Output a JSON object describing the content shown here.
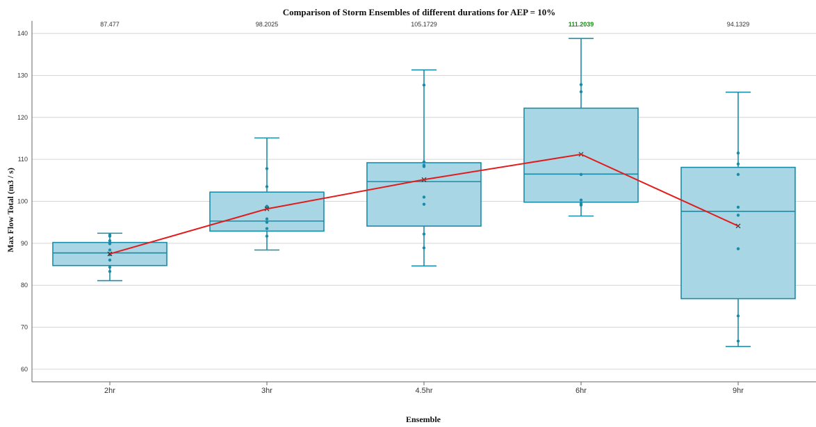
{
  "chart_data": {
    "type": "box",
    "title": "Comparison of Storm Ensembles of different durations for AEP =  10%",
    "xlabel": "Ensemble",
    "ylabel": "Max Flow Total (m3 / s)",
    "ylim": [
      57,
      143
    ],
    "yticks": [
      60,
      70,
      80,
      90,
      100,
      110,
      120,
      130,
      140
    ],
    "grid": true,
    "categories": [
      "2hr",
      "3hr",
      "4.5hr",
      "6hr",
      "9hr"
    ],
    "mean_labels": [
      "87.477",
      "98.2025",
      "105.1729",
      "111.2039",
      "94.1329"
    ],
    "highlight_index": 3,
    "boxes": [
      {
        "category": "2hr",
        "min": 81.1,
        "q1": 84.7,
        "median": 87.7,
        "q3": 90.2,
        "max": 92.4,
        "mean": 87.477,
        "points": [
          92.0,
          91.7,
          90.6,
          90.1,
          89.9,
          88.4,
          87.3,
          86.0,
          84.3,
          83.3
        ]
      },
      {
        "category": "3hr",
        "min": 88.4,
        "q1": 92.9,
        "median": 95.3,
        "q3": 102.2,
        "max": 115.1,
        "mean": 98.2025,
        "points": [
          107.8,
          103.5,
          98.8,
          98.5,
          95.8,
          95.0,
          93.5,
          91.7
        ]
      },
      {
        "category": "4.5hr",
        "min": 84.6,
        "q1": 94.1,
        "median": 104.7,
        "q3": 109.2,
        "max": 131.3,
        "mean": 105.1729,
        "points": [
          127.7,
          109.4,
          108.6,
          108.3,
          101.0,
          99.3,
          92.2,
          88.9
        ]
      },
      {
        "category": "6hr",
        "min": 96.5,
        "q1": 99.8,
        "median": 106.5,
        "q3": 122.2,
        "max": 138.8,
        "mean": 111.2039,
        "points": [
          127.8,
          126.1,
          106.4,
          100.3,
          99.4,
          99.1
        ]
      },
      {
        "category": "9hr",
        "min": 65.4,
        "q1": 76.8,
        "median": 97.6,
        "q3": 108.1,
        "max": 126.0,
        "mean": 94.1329,
        "points": [
          111.5,
          108.9,
          106.4,
          98.6,
          96.7,
          88.7,
          72.7,
          66.7
        ]
      }
    ],
    "mean_line": {
      "values": [
        87.477,
        98.2025,
        105.1729,
        111.2039,
        94.1329
      ],
      "color": "#e21b1b"
    },
    "colors": {
      "box_fill": "#a8d6e4",
      "box_stroke": "#1a8ca8",
      "grid": "#d4d4d4",
      "axis": "#666666",
      "highlight": "#1a8a1a"
    }
  }
}
